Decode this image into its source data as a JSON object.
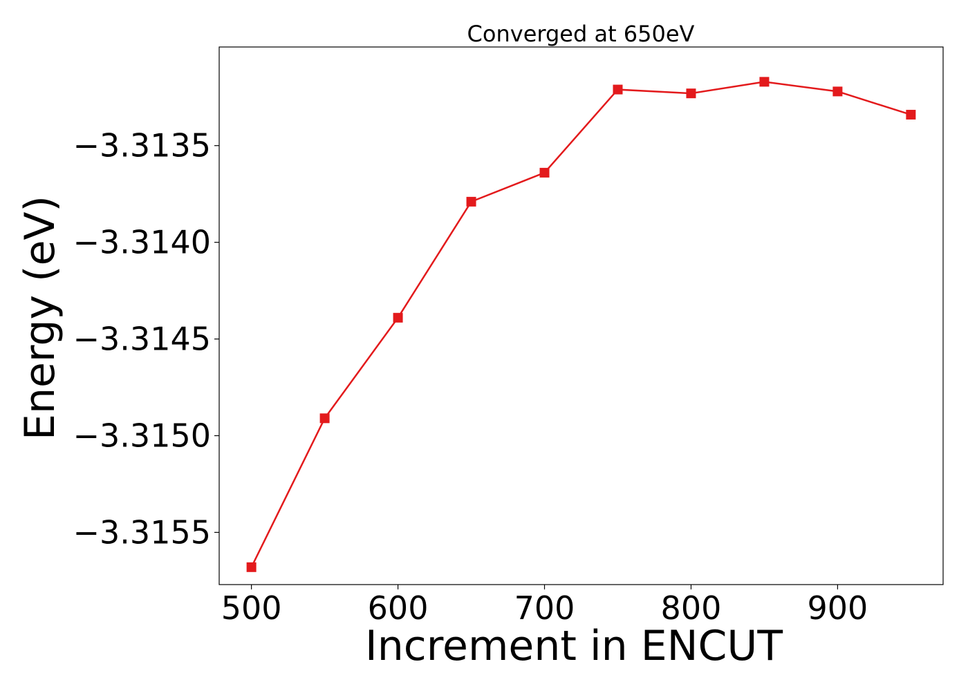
{
  "chart_data": {
    "type": "line",
    "title": "Converged at 650eV",
    "xlabel": "Increment in ENCUT",
    "ylabel": "Energy (eV)",
    "xlim": [
      478,
      972
    ],
    "ylim": [
      -3.31577,
      -3.31299
    ],
    "x_ticks": [
      500,
      600,
      700,
      800,
      900
    ],
    "x_tick_labels": [
      "500",
      "600",
      "700",
      "800",
      "900"
    ],
    "y_ticks": [
      -3.3135,
      -3.314,
      -3.3145,
      -3.315,
      -3.3155
    ],
    "y_tick_labels": [
      "−3.3135",
      "−3.3140",
      "−3.3145",
      "−3.3150",
      "−3.3155"
    ],
    "grid": false,
    "series": [
      {
        "color": "#e31a1c",
        "marker": "square",
        "x": [
          500,
          550,
          600,
          650,
          700,
          750,
          800,
          850,
          900,
          950
        ],
        "y": [
          -3.31568,
          -3.31491,
          -3.31439,
          -3.31379,
          -3.31364,
          -3.31321,
          -3.31323,
          -3.31317,
          -3.31322,
          -3.31334
        ]
      }
    ]
  }
}
